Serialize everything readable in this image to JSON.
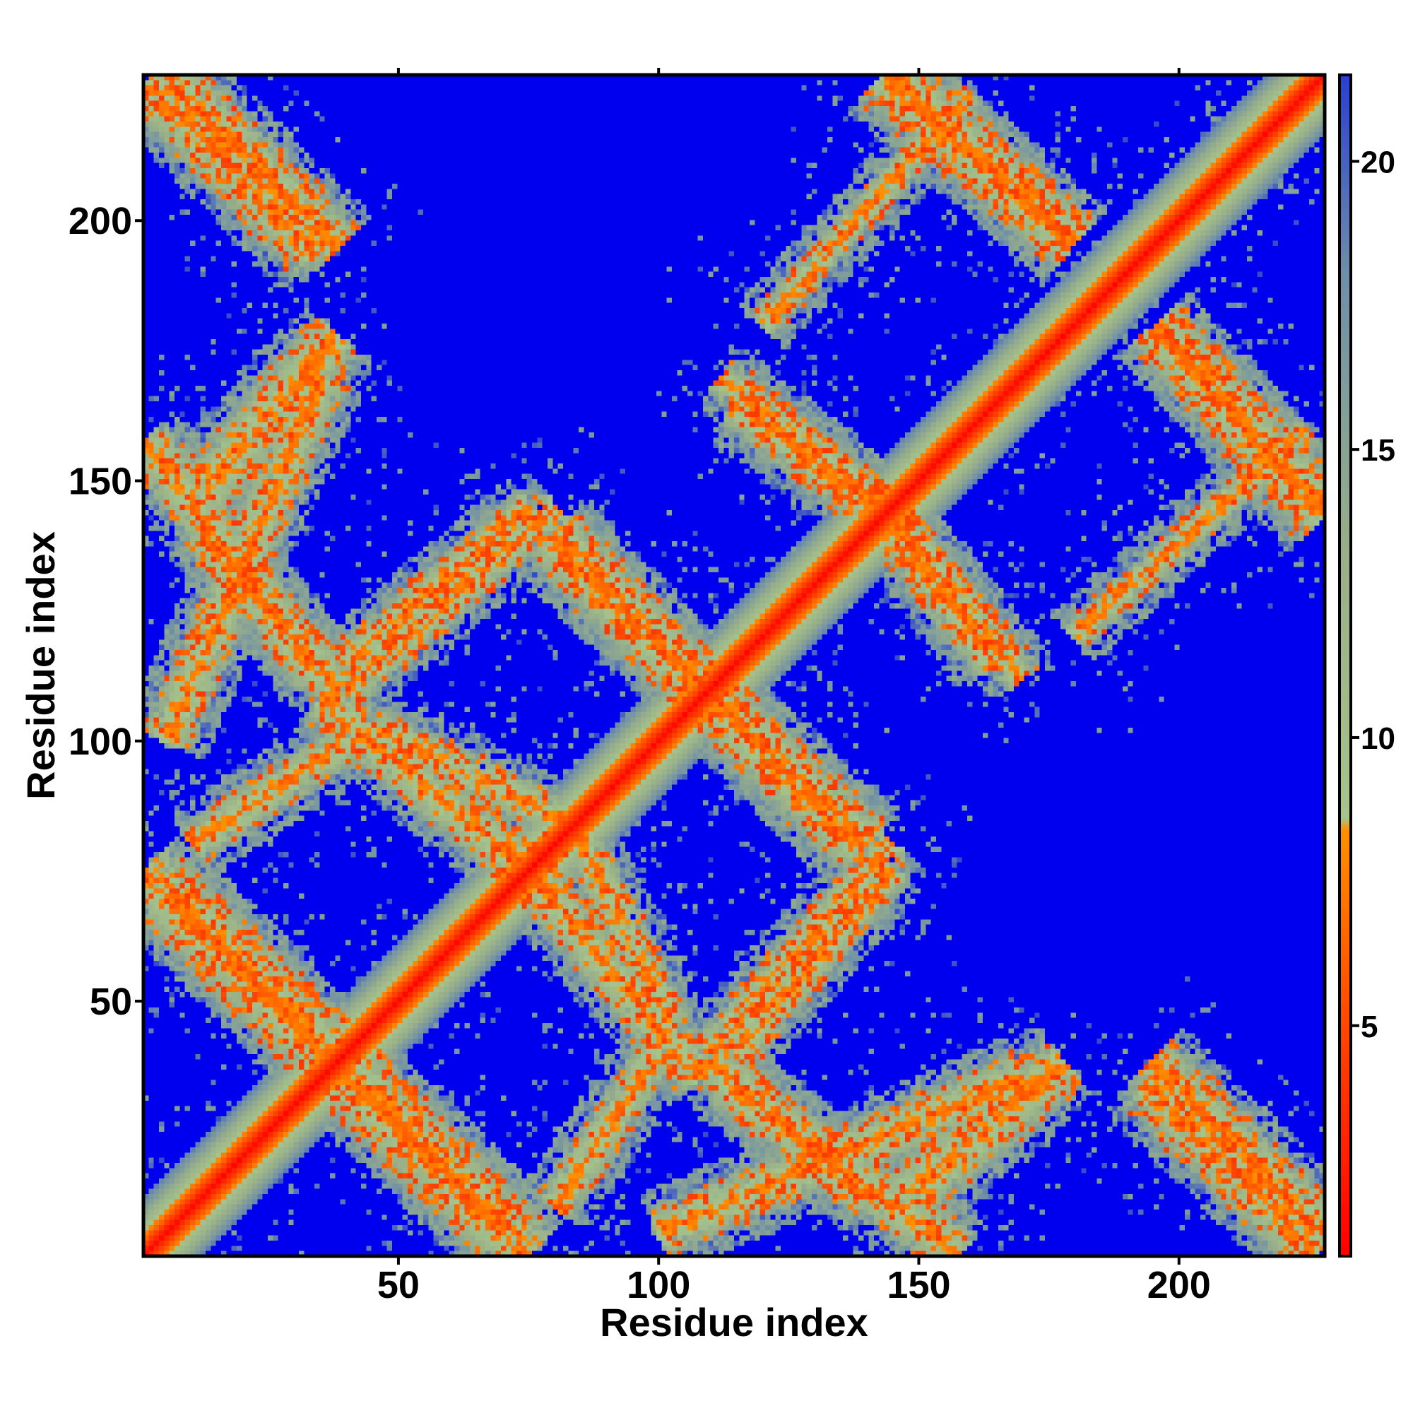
{
  "chart_data": {
    "type": "heatmap",
    "title": "",
    "xlabel": "Residue index",
    "ylabel": "Residue index",
    "n_residues": 228,
    "xlim": [
      1,
      228
    ],
    "ylim": [
      1,
      228
    ],
    "x_ticks": [
      50,
      100,
      150,
      200
    ],
    "y_ticks": [
      50,
      100,
      150,
      200
    ],
    "colorbar": {
      "range": [
        1,
        21.5
      ],
      "ticks": [
        5,
        10,
        15,
        20
      ],
      "colors": {
        "red": "#ff0000",
        "orange": "#ff9000",
        "pale_green": "#a6c48c",
        "steel_blue": "#4a6fb0",
        "blue": "#0000ee"
      },
      "stops": [
        {
          "value": 1.0,
          "color": "#ff0000"
        },
        {
          "value": 5.5,
          "color": "#ff5000"
        },
        {
          "value": 8.4,
          "color": "#ff9000"
        },
        {
          "value": 8.6,
          "color": "#a6c48c"
        },
        {
          "value": 13.0,
          "color": "#9ab088"
        },
        {
          "value": 18.0,
          "color": "#6f8fa8"
        },
        {
          "value": 21.5,
          "color": "#2a3fd0"
        }
      ],
      "background_color": "#0000ee"
    },
    "diagonal_band": {
      "center_value": 1.5,
      "half_width_residues": 11
    },
    "contact_bands": [
      {
        "orientation": "anti",
        "from": [
          1,
          227
        ],
        "to": [
          34,
          194
        ],
        "half_width": 6
      },
      {
        "orientation": "anti",
        "from": [
          1,
          158
        ],
        "to": [
          34,
          113
        ],
        "half_width": 5
      },
      {
        "orientation": "anti",
        "from": [
          1,
          75
        ],
        "to": [
          70,
          5
        ],
        "half_width": 7
      },
      {
        "orientation": "anti",
        "from": [
          35,
          108
        ],
        "to": [
          80,
          70
        ],
        "half_width": 5
      },
      {
        "orientation": "anti",
        "from": [
          80,
          138
        ],
        "to": [
          108,
          110
        ],
        "half_width": 6
      },
      {
        "orientation": "anti",
        "from": [
          108,
          110
        ],
        "to": [
          140,
          80
        ],
        "half_width": 6
      },
      {
        "orientation": "anti",
        "from": [
          83,
          85
        ],
        "to": [
          102,
          46
        ],
        "half_width": 4
      },
      {
        "orientation": "anti",
        "from": [
          115,
          165
        ],
        "to": [
          148,
          140
        ],
        "half_width": 5
      },
      {
        "orientation": "anti",
        "from": [
          148,
          140
        ],
        "to": [
          170,
          112
        ],
        "half_width": 4
      },
      {
        "orientation": "anti",
        "from": [
          143,
          228
        ],
        "to": [
          180,
          196
        ],
        "half_width": 6
      },
      {
        "orientation": "anti",
        "from": [
          196,
          180
        ],
        "to": [
          228,
          145
        ],
        "half_width": 6
      },
      {
        "orientation": "anti",
        "from": [
          110,
          38
        ],
        "to": [
          140,
          12
        ],
        "half_width": 5
      },
      {
        "orientation": "anti",
        "from": [
          195,
          38
        ],
        "to": [
          228,
          5
        ],
        "half_width": 6
      },
      {
        "orientation": "para",
        "from": [
          5,
          100
        ],
        "to": [
          35,
          170
        ],
        "half_width": 5
      },
      {
        "orientation": "para",
        "from": [
          40,
          110
        ],
        "to": [
          80,
          145
        ],
        "half_width": 4
      },
      {
        "orientation": "para",
        "from": [
          80,
          10
        ],
        "to": [
          100,
          40
        ],
        "half_width": 4
      },
      {
        "orientation": "para",
        "from": [
          115,
          40
        ],
        "to": [
          145,
          75
        ],
        "half_width": 4
      },
      {
        "orientation": "para",
        "from": [
          148,
          12
        ],
        "to": [
          178,
          38
        ],
        "half_width": 6
      },
      {
        "orientation": "para",
        "from": [
          120,
          180
        ],
        "to": [
          160,
          225
        ],
        "half_width": 3
      }
    ]
  }
}
